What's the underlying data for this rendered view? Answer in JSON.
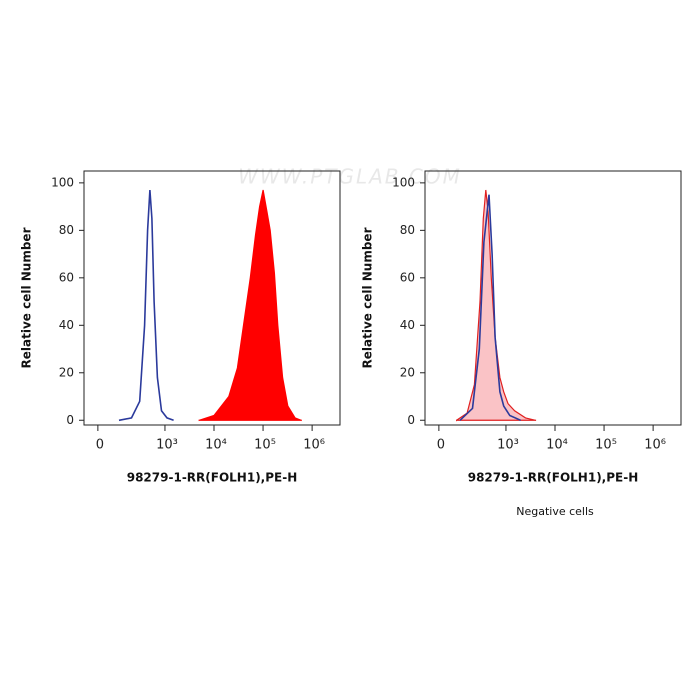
{
  "watermark": "WWW.PTGLAB.COM",
  "chart_data": [
    {
      "type": "area",
      "xlabel": "98279-1-RR(FOLH1),PE-H",
      "ylabel": "Relative cell Number",
      "x_scale": "asinh",
      "x_asinh_width": 86,
      "xlim": [
        -60,
        3700000
      ],
      "xticks": [
        0,
        {
          "value": 1000,
          "label": "10³"
        },
        {
          "value": 10000,
          "label": "10⁴"
        },
        {
          "value": 100000,
          "label": "10⁵"
        },
        {
          "value": 1000000,
          "label": "10⁶"
        }
      ],
      "ylim": [
        -2,
        105
      ],
      "yticks": [
        0,
        20,
        40,
        60,
        80,
        100
      ],
      "series": [
        {
          "color": "#2b3a9c",
          "filled": false,
          "x": [
            100,
            200,
            300,
            380,
            440,
            490,
            540,
            600,
            700,
            850,
            1100,
            1500
          ],
          "values": [
            0,
            1,
            8,
            40,
            80,
            97,
            85,
            50,
            18,
            4,
            1,
            0
          ]
        },
        {
          "color": "#ff0000",
          "filled": true,
          "fill": "#ff0000",
          "fill_opacity": 1,
          "x": [
            5000,
            10000,
            20000,
            30000,
            40000,
            55000,
            70000,
            85000,
            100000,
            120000,
            140000,
            170000,
            200000,
            250000,
            320000,
            450000,
            600000
          ],
          "values": [
            0,
            2,
            10,
            22,
            40,
            60,
            78,
            90,
            97,
            88,
            80,
            62,
            40,
            18,
            6,
            1,
            0
          ]
        }
      ]
    },
    {
      "type": "area",
      "xlabel": "98279-1-RR(FOLH1),PE-H",
      "ylabel": "Relative cell Number",
      "annotation": "Negative cells",
      "x_scale": "asinh",
      "x_asinh_width": 86,
      "xlim": [
        -60,
        3700000
      ],
      "xticks": [
        0,
        {
          "value": 1000,
          "label": "10³"
        },
        {
          "value": 10000,
          "label": "10⁴"
        },
        {
          "value": 100000,
          "label": "10⁵"
        },
        {
          "value": 1000000,
          "label": "10⁶"
        }
      ],
      "ylim": [
        -2,
        105
      ],
      "yticks": [
        0,
        20,
        40,
        60,
        80,
        100
      ],
      "series": [
        {
          "color": "#e02020",
          "filled": true,
          "fill": "#f9b4b8",
          "fill_opacity": 0.8,
          "x": [
            80,
            150,
            220,
            290,
            340,
            384,
            430,
            500,
            600,
            750,
            900,
            1100,
            1500,
            2500,
            4000
          ],
          "values": [
            0,
            3,
            15,
            50,
            85,
            97,
            88,
            60,
            35,
            18,
            12,
            7,
            4,
            1,
            0
          ]
        },
        {
          "color": "#2b3a9c",
          "filled": false,
          "x": [
            100,
            200,
            280,
            350,
            447,
            520,
            600,
            750,
            900,
            1200,
            2000
          ],
          "values": [
            0,
            5,
            30,
            75,
            95,
            70,
            35,
            12,
            6,
            2,
            0
          ]
        }
      ]
    }
  ]
}
